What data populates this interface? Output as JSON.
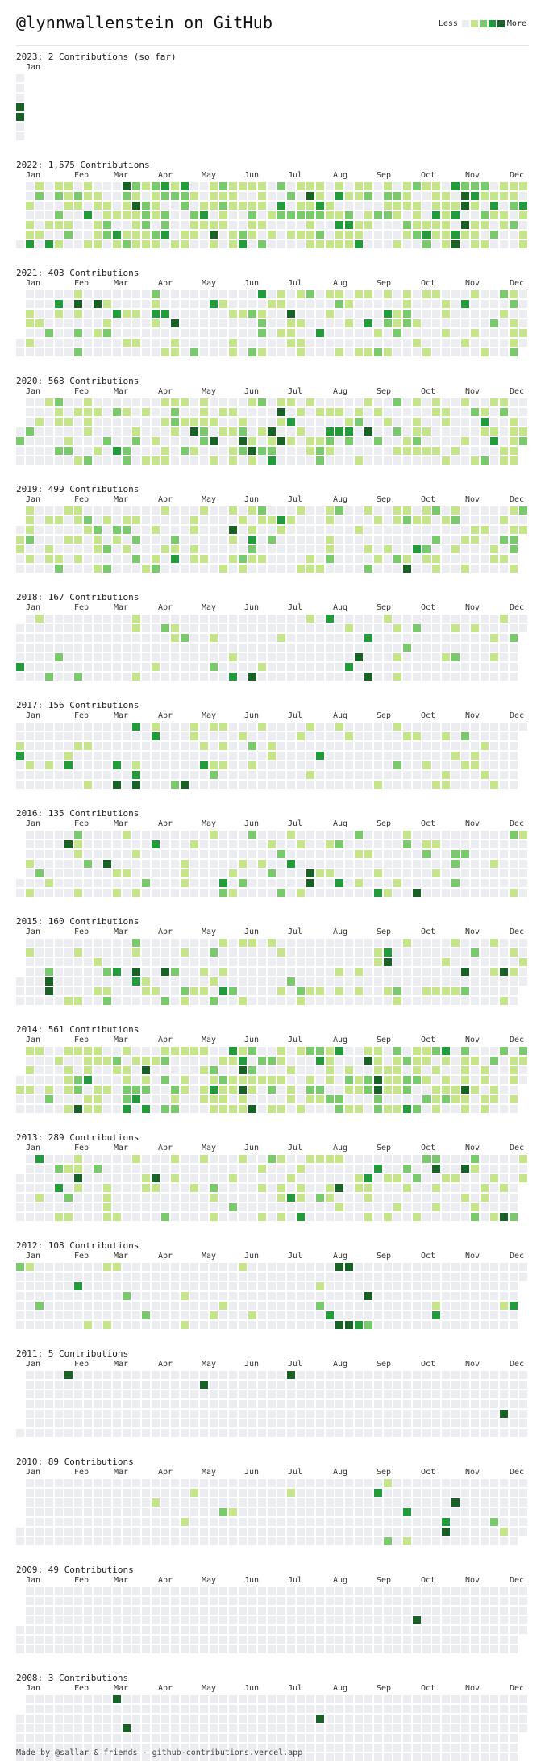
{
  "header": {
    "title": "@lynnwallenstein on GitHub"
  },
  "legend": {
    "less_label": "Less",
    "more_label": "More",
    "levels": [
      "#ebedf0",
      "#c6e48b",
      "#7bc96f",
      "#239a3b",
      "#196127"
    ]
  },
  "footer": {
    "text": "Made by @sallar & friends - github-contributions.vercel.app"
  },
  "years": [
    {
      "title": "2023: 2 Contributions (so far)",
      "months": [
        "Jan"
      ],
      "weeks": 1,
      "first_weekday": 0,
      "last_day_index": 6,
      "spots": [
        [
          0,
          3,
          4
        ],
        [
          0,
          4,
          4
        ]
      ]
    },
    {
      "title": "2022: 1,575 Contributions",
      "months": [
        "Jan",
        "Feb",
        "Mar",
        "Apr",
        "May",
        "Jun",
        "Jul",
        "Aug",
        "Sep",
        "Oct",
        "Nov",
        "Dec"
      ],
      "weeks": 53,
      "first_weekday": 6,
      "last_day_index": 370,
      "density": 0.62,
      "spots": [
        [
          11,
          0,
          4
        ],
        [
          13,
          2,
          2
        ],
        [
          15,
          4,
          2
        ],
        [
          10,
          5,
          3
        ],
        [
          24,
          3,
          2
        ],
        [
          30,
          1,
          4
        ],
        [
          31,
          2,
          3
        ],
        [
          34,
          4,
          3
        ],
        [
          45,
          0,
          3
        ],
        [
          46,
          1,
          4
        ],
        [
          46,
          2,
          4
        ],
        [
          45,
          3,
          3
        ],
        [
          46,
          4,
          4
        ],
        [
          45,
          5,
          3
        ],
        [
          45,
          6,
          4
        ],
        [
          12,
          2,
          4
        ],
        [
          20,
          5,
          4
        ]
      ]
    },
    {
      "title": "2021: 403 Contributions",
      "months": [
        "Jan",
        "Feb",
        "Mar",
        "Apr",
        "May",
        "Jun",
        "Jul",
        "Aug",
        "Sep",
        "Oct",
        "Nov",
        "Dec"
      ],
      "weeks": 53,
      "first_weekday": 5,
      "last_day_index": 369,
      "density": 0.3,
      "spots": [
        [
          6,
          1,
          4
        ],
        [
          8,
          1,
          4
        ],
        [
          10,
          2,
          3
        ],
        [
          14,
          2,
          3
        ],
        [
          16,
          3,
          4
        ],
        [
          20,
          1,
          3
        ],
        [
          25,
          0,
          3
        ],
        [
          28,
          2,
          4
        ],
        [
          31,
          4,
          3
        ],
        [
          36,
          3,
          3
        ],
        [
          38,
          2,
          3
        ],
        [
          40,
          3,
          2
        ],
        [
          35,
          7,
          4
        ]
      ]
    },
    {
      "title": "2020: 568 Contributions",
      "months": [
        "Jan",
        "Feb",
        "Mar",
        "Apr",
        "May",
        "Jun",
        "Jul",
        "Aug",
        "Sep",
        "Oct",
        "Nov",
        "Dec"
      ],
      "weeks": 53,
      "first_weekday": 3,
      "last_day_index": 368,
      "density": 0.38,
      "spots": [
        [
          1,
          7,
          4
        ],
        [
          4,
          7,
          3
        ],
        [
          18,
          3,
          4
        ],
        [
          20,
          4,
          4
        ],
        [
          23,
          4,
          4
        ],
        [
          24,
          5,
          4
        ],
        [
          26,
          3,
          4
        ],
        [
          27,
          1,
          4
        ],
        [
          27,
          4,
          4
        ],
        [
          26,
          6,
          3
        ],
        [
          27,
          7,
          4
        ],
        [
          28,
          2,
          3
        ],
        [
          33,
          3,
          3
        ],
        [
          36,
          3,
          4
        ],
        [
          48,
          2,
          3
        ]
      ]
    },
    {
      "title": "2019: 499 Contributions",
      "months": [
        "Jan",
        "Feb",
        "Mar",
        "Apr",
        "May",
        "Jun",
        "Jul",
        "Aug",
        "Sep",
        "Oct",
        "Nov",
        "Dec"
      ],
      "weeks": 53,
      "first_weekday": 2,
      "last_day_index": 366,
      "density": 0.34,
      "spots": [
        [
          22,
          2,
          4
        ],
        [
          40,
          6,
          4
        ],
        [
          41,
          4,
          3
        ]
      ]
    },
    {
      "title": "2018: 167 Contributions",
      "months": [
        "Jan",
        "Feb",
        "Mar",
        "Apr",
        "May",
        "Jun",
        "Jul",
        "Aug",
        "Sep",
        "Oct",
        "Nov",
        "Dec"
      ],
      "weeks": 53,
      "first_weekday": 1,
      "last_day_index": 365,
      "density": 0.12,
      "spots": [
        [
          35,
          4,
          4
        ],
        [
          36,
          6,
          4
        ],
        [
          36,
          2,
          3
        ],
        [
          34,
          5,
          3
        ],
        [
          24,
          6,
          4
        ],
        [
          22,
          6,
          3
        ],
        [
          32,
          0,
          3
        ]
      ]
    },
    {
      "title": "2017: 156 Contributions",
      "months": [
        "Jan",
        "Feb",
        "Mar",
        "Apr",
        "May",
        "Jun",
        "Jul",
        "Aug",
        "Sep",
        "Oct",
        "Nov",
        "Dec"
      ],
      "weeks": 53,
      "first_weekday": 0,
      "last_day_index": 364,
      "density": 0.16,
      "spots": [
        [
          0,
          3,
          3
        ],
        [
          10,
          6,
          4
        ],
        [
          12,
          6,
          4
        ],
        [
          10,
          4,
          3
        ],
        [
          12,
          5,
          3
        ],
        [
          17,
          6,
          4
        ],
        [
          19,
          4,
          3
        ],
        [
          5,
          4,
          3
        ]
      ]
    },
    {
      "title": "2016: 135 Contributions",
      "months": [
        "Jan",
        "Feb",
        "Mar",
        "Apr",
        "May",
        "Jun",
        "Jul",
        "Aug",
        "Sep",
        "Oct",
        "Nov",
        "Dec"
      ],
      "weeks": 53,
      "first_weekday": 5,
      "last_day_index": 370,
      "density": 0.14,
      "spots": [
        [
          5,
          1,
          4
        ],
        [
          9,
          3,
          4
        ],
        [
          30,
          4,
          4
        ],
        [
          30,
          5,
          4
        ],
        [
          41,
          6,
          4
        ],
        [
          37,
          6,
          3
        ],
        [
          28,
          3,
          3
        ]
      ]
    },
    {
      "title": "2015: 160 Contributions",
      "months": [
        "Jan",
        "Feb",
        "Mar",
        "Apr",
        "May",
        "Jun",
        "Jul",
        "Aug",
        "Sep",
        "Oct",
        "Nov",
        "Dec"
      ],
      "weeks": 53,
      "first_weekday": 4,
      "last_day_index": 368,
      "density": 0.16,
      "spots": [
        [
          3,
          4,
          4
        ],
        [
          3,
          5,
          4
        ],
        [
          12,
          3,
          4
        ],
        [
          15,
          3,
          4
        ],
        [
          38,
          2,
          4
        ],
        [
          46,
          3,
          4
        ],
        [
          50,
          3,
          4
        ],
        [
          43,
          7,
          3
        ]
      ]
    },
    {
      "title": "2014: 561 Contributions",
      "months": [
        "Jan",
        "Feb",
        "Mar",
        "Apr",
        "May",
        "Jun",
        "Jul",
        "Aug",
        "Sep",
        "Oct",
        "Nov",
        "Dec"
      ],
      "weeks": 53,
      "first_weekday": 3,
      "last_day_index": 367,
      "density": 0.52,
      "spots": [
        [
          6,
          6,
          4
        ],
        [
          13,
          2,
          4
        ],
        [
          20,
          4,
          3
        ],
        [
          23,
          2,
          4
        ],
        [
          23,
          4,
          4
        ],
        [
          24,
          6,
          4
        ],
        [
          36,
          1,
          4
        ],
        [
          37,
          3,
          4
        ],
        [
          37,
          4,
          4
        ],
        [
          46,
          4,
          4
        ],
        [
          44,
          0,
          3
        ]
      ]
    },
    {
      "title": "2013: 289 Contributions",
      "months": [
        "Jan",
        "Feb",
        "Mar",
        "Apr",
        "May",
        "Jun",
        "Jul",
        "Aug",
        "Sep",
        "Oct",
        "Nov",
        "Dec"
      ],
      "weeks": 53,
      "first_weekday": 2,
      "last_day_index": 366,
      "density": 0.28,
      "spots": [
        [
          6,
          2,
          4
        ],
        [
          14,
          2,
          4
        ],
        [
          33,
          3,
          4
        ],
        [
          43,
          1,
          4
        ],
        [
          46,
          1,
          4
        ],
        [
          50,
          6,
          4
        ],
        [
          6,
          7,
          3
        ],
        [
          36,
          2,
          3
        ]
      ]
    },
    {
      "title": "2012: 108 Contributions",
      "months": [
        "Jan",
        "Feb",
        "Mar",
        "Apr",
        "May",
        "Jun",
        "Jul",
        "Aug",
        "Sep",
        "Oct",
        "Nov",
        "Dec"
      ],
      "weeks": 53,
      "first_weekday": 0,
      "last_day_index": 365,
      "density": 0.05,
      "spots": [
        [
          33,
          0,
          4
        ],
        [
          34,
          0,
          4
        ],
        [
          36,
          3,
          4
        ],
        [
          32,
          5,
          3
        ],
        [
          33,
          6,
          4
        ],
        [
          34,
          6,
          4
        ],
        [
          35,
          6,
          3
        ],
        [
          36,
          6,
          2
        ],
        [
          13,
          5,
          2
        ],
        [
          16,
          7,
          2
        ],
        [
          11,
          3,
          2
        ]
      ]
    },
    {
      "title": "2011: 5 Contributions",
      "months": [
        "Jan",
        "Feb",
        "Mar",
        "Apr",
        "May",
        "Jun",
        "Jul",
        "Aug",
        "Sep",
        "Oct",
        "Nov",
        "Dec"
      ],
      "weeks": 53,
      "first_weekday": 6,
      "last_day_index": 370,
      "density": 0.0,
      "spots": [
        [
          5,
          0,
          4
        ],
        [
          19,
          1,
          4
        ],
        [
          28,
          0,
          4
        ],
        [
          29,
          7,
          4
        ],
        [
          50,
          4,
          4
        ]
      ]
    },
    {
      "title": "2010: 89 Contributions",
      "months": [
        "Jan",
        "Feb",
        "Mar",
        "Apr",
        "May",
        "Jun",
        "Jul",
        "Aug",
        "Sep",
        "Oct",
        "Nov",
        "Dec"
      ],
      "weeks": 53,
      "first_weekday": 5,
      "last_day_index": 369,
      "density": 0.03,
      "spots": [
        [
          45,
          2,
          4
        ],
        [
          44,
          5,
          4
        ],
        [
          44,
          4,
          3
        ],
        [
          37,
          1,
          3
        ],
        [
          40,
          3,
          3
        ],
        [
          36,
          7,
          3
        ],
        [
          38,
          6,
          2
        ]
      ]
    },
    {
      "title": "2009: 49 Contributions",
      "months": [
        "Jan",
        "Feb",
        "Mar",
        "Apr",
        "May",
        "Jun",
        "Jul",
        "Aug",
        "Sep",
        "Oct",
        "Nov",
        "Dec"
      ],
      "weeks": 53,
      "first_weekday": 4,
      "last_day_index": 368,
      "density": 0.0,
      "spots": [
        [
          41,
          3,
          4
        ]
      ]
    },
    {
      "title": "2008: 3 Contributions",
      "months": [
        "Jan",
        "Feb",
        "Mar",
        "Apr",
        "May",
        "Jun",
        "Jul",
        "Aug",
        "Sep",
        "Oct",
        "Nov",
        "Dec"
      ],
      "weeks": 53,
      "first_weekday": 2,
      "last_day_index": 367,
      "density": 0.0,
      "spots": [
        [
          10,
          0,
          4
        ],
        [
          11,
          3,
          4
        ],
        [
          31,
          2,
          4
        ]
      ]
    }
  ]
}
